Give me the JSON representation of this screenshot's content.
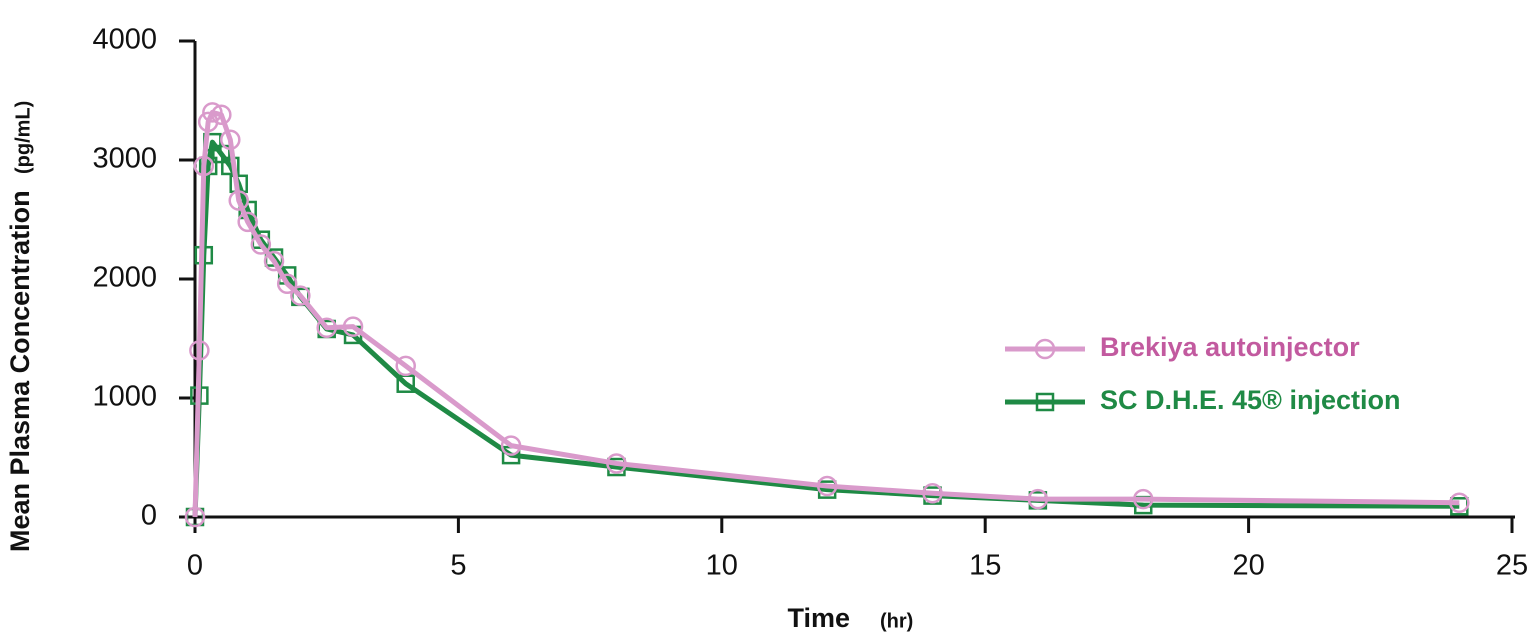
{
  "chart_data": {
    "type": "line",
    "x_label": "Time",
    "x_label_unit": "(hr)",
    "y_label": "Mean Plasma Concentration",
    "y_label_unit": "(pg/mL)",
    "x": [
      0,
      0.083,
      0.167,
      0.25,
      0.33,
      0.5,
      0.67,
      0.83,
      1.0,
      1.25,
      1.5,
      1.75,
      2.0,
      2.5,
      3.0,
      4.0,
      6.0,
      8.0,
      12.0,
      14.0,
      16.0,
      18.0,
      24.0
    ],
    "series": [
      {
        "name": "Brekiya autoinjector",
        "color": "#d99acb",
        "text_color": "#c25a9f",
        "marker": "circle",
        "values": [
          0,
          1400,
          2950,
          3320,
          3400,
          3380,
          3170,
          2660,
          2480,
          2290,
          2150,
          1960,
          1860,
          1590,
          1600,
          1270,
          600,
          450,
          260,
          200,
          150,
          150,
          120
        ]
      },
      {
        "name": "SC D.H.E. 45® injection",
        "color": "#1f8a45",
        "text_color": "#1f8a45",
        "marker": "square",
        "values": [
          0,
          1020,
          2200,
          2950,
          3150,
          3050,
          2950,
          2800,
          2580,
          2330,
          2180,
          2030,
          1850,
          1580,
          1530,
          1120,
          520,
          420,
          230,
          180,
          140,
          100,
          90
        ]
      }
    ],
    "xlim": [
      0,
      25
    ],
    "xticks": [
      0,
      5,
      10,
      15,
      20,
      25
    ],
    "ylim": [
      0,
      4000
    ],
    "yticks": [
      0,
      1000,
      2000,
      3000,
      4000
    ],
    "grid": false,
    "legend": "right"
  }
}
